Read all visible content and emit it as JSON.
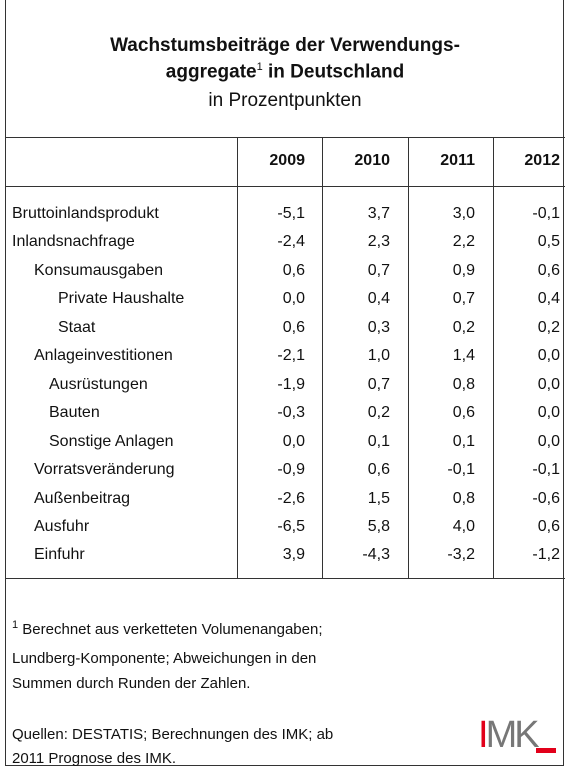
{
  "header": {
    "title_line1": "Wachstumsbeiträge der Verwendungs-",
    "title_line2a": "aggregate",
    "title_sup": "1",
    "title_line2b": " in Deutschland",
    "subtitle": "in Prozentpunkten"
  },
  "table": {
    "columns": [
      "2009",
      "2010",
      "2011",
      "2012"
    ],
    "rows": [
      [
        "Bruttoinlandsprodukt",
        "-5,1",
        "3,7",
        "3,0",
        "-0,1"
      ],
      [
        "Inlandsnachfrage",
        "-2,4",
        "2,3",
        "2,2",
        "0,5"
      ],
      [
        "Konsumausgaben",
        "0,6",
        "0,7",
        "0,9",
        "0,6"
      ],
      [
        "Private Haushalte",
        "0,0",
        "0,4",
        "0,7",
        "0,4"
      ],
      [
        "Staat",
        "0,6",
        "0,3",
        "0,2",
        "0,2"
      ],
      [
        "Anlageinvestitionen",
        "-2,1",
        "1,0",
        "1,4",
        "0,0"
      ],
      [
        "Ausrüstungen",
        "-1,9",
        "0,7",
        "0,8",
        "0,0"
      ],
      [
        "Bauten",
        "-0,3",
        "0,2",
        "0,6",
        "0,0"
      ],
      [
        "Sonstige Anlagen",
        "0,0",
        "0,1",
        "0,1",
        "0,0"
      ],
      [
        "Vorratsveränderung",
        "-0,9",
        "0,6",
        "-0,1",
        "-0,1"
      ],
      [
        "Außenbeitrag",
        "-2,6",
        "1,5",
        "0,8",
        "-0,6"
      ],
      [
        "Ausfuhr",
        "-6,5",
        "5,8",
        "4,0",
        "0,6"
      ],
      [
        "Einfuhr",
        "3,9",
        "-4,3",
        "-3,2",
        "-1,2"
      ]
    ]
  },
  "footer": {
    "footnote_mark": "1",
    "footnote_lines": [
      " Berechnet aus verketteten Volumenangaben;",
      "Lundberg-Komponente; Abweichungen in den",
      "Summen durch Runden der Zahlen."
    ],
    "sources_lines": [
      "Quellen: DESTATIS; Berechnungen des IMK; ab",
      "2011 Prognose des IMK."
    ],
    "logo": "IMK"
  }
}
